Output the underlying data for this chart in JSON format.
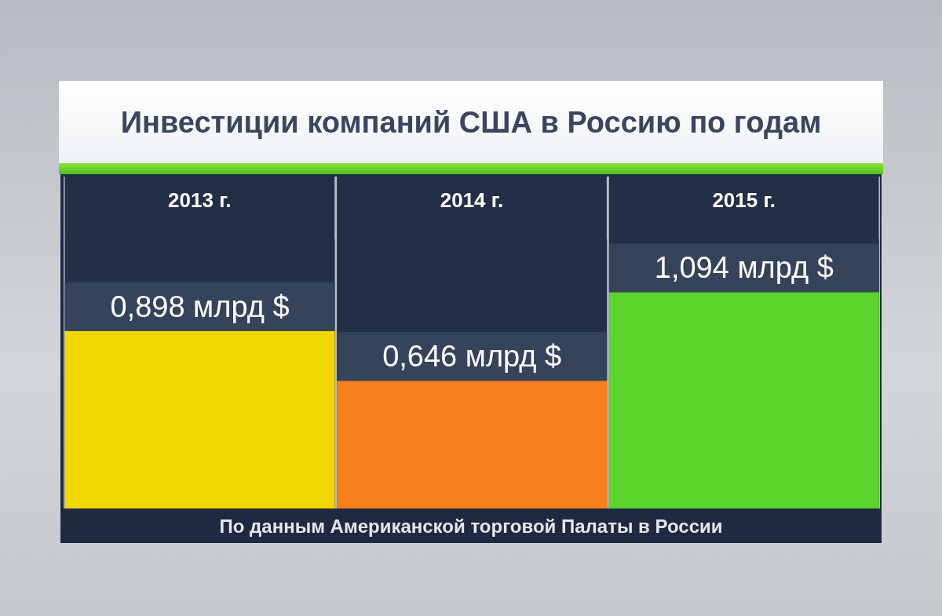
{
  "chart_data": {
    "type": "bar",
    "title": "Инвестиции компаний США в Россию по годам",
    "categories": [
      "2013 г.",
      "2014 г.",
      "2015 г."
    ],
    "values": [
      0.898,
      0.646,
      1.094
    ],
    "colors": [
      "#f2d600",
      "#f6801a",
      "#5ad42a"
    ],
    "value_labels": [
      "0,898 млрд $",
      "0,646 млрд $",
      "1,094 млрд $"
    ],
    "annotations": [
      "По данным Американской торговой Палаты в России"
    ],
    "tick_labels": "x"
  }
}
